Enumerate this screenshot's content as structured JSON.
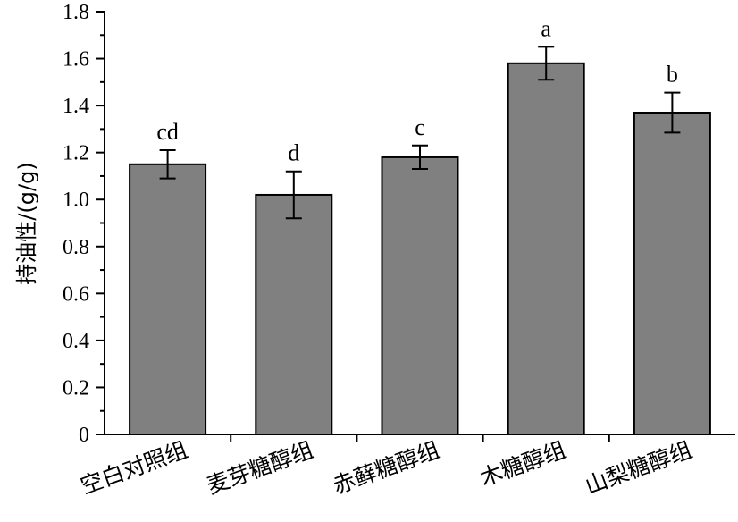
{
  "chart_data": {
    "type": "bar",
    "categories": [
      "空白对照组",
      "麦芽糖醇组",
      "赤藓糖醇组",
      "木糖醇组",
      "山梨糖醇组"
    ],
    "values": [
      1.15,
      1.02,
      1.18,
      1.58,
      1.37
    ],
    "errors": [
      0.06,
      0.1,
      0.05,
      0.07,
      0.085
    ],
    "significance": [
      "cd",
      "d",
      "c",
      "a",
      "b"
    ],
    "xlabel": "",
    "ylabel": "持油性/(g/g)",
    "ylim": [
      0,
      1.8
    ],
    "yticks": [
      "0",
      "0.2",
      "0.4",
      "0.6",
      "0.8",
      "1.0",
      "1.2",
      "1.4",
      "1.6",
      "1.8"
    ],
    "grid": false,
    "bar_color": "#808080"
  }
}
